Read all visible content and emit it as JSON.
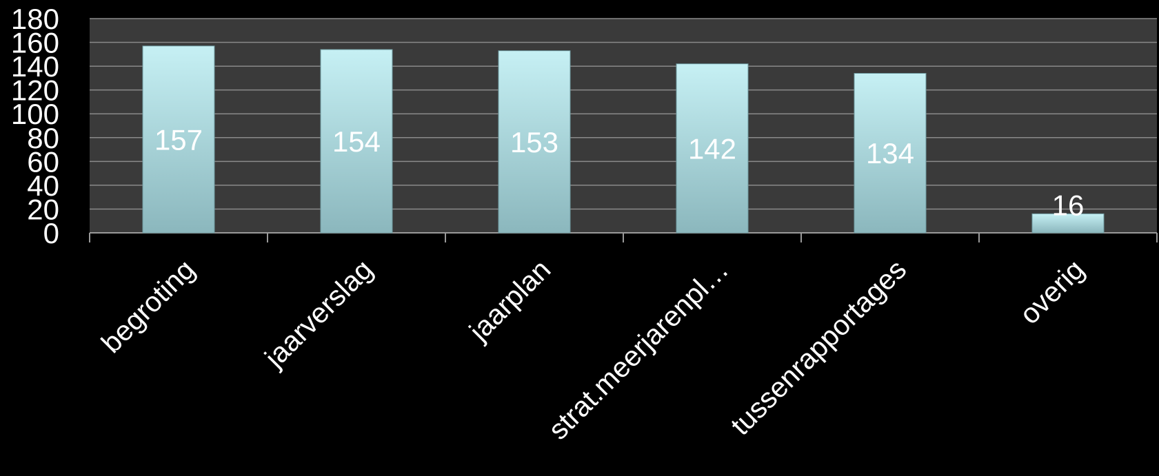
{
  "chart_data": {
    "type": "bar",
    "categories": [
      "begroting",
      "jaarverslag",
      "jaarplan",
      "strat.meerjarenpl…",
      "tussenrapportages",
      "overig"
    ],
    "values": [
      157,
      154,
      153,
      142,
      134,
      16
    ],
    "data_labels": [
      "157",
      "154",
      "153",
      "142",
      "134",
      "16"
    ],
    "ylim": [
      0,
      180
    ],
    "yticks": [
      0,
      20,
      40,
      60,
      80,
      100,
      120,
      140,
      160,
      180
    ],
    "ytick_labels": [
      "0",
      "20",
      "40",
      "60",
      "80",
      "100",
      "120",
      "140",
      "160",
      "180"
    ],
    "grid": true,
    "legend": "none",
    "colors": {
      "background": "#000000",
      "plot_area": "#3a3a3a",
      "gridline": "#8a8a8a",
      "bar_top": "#c6f0f4",
      "bar_bottom": "#8bb7bd",
      "text": "#ffffff"
    }
  }
}
